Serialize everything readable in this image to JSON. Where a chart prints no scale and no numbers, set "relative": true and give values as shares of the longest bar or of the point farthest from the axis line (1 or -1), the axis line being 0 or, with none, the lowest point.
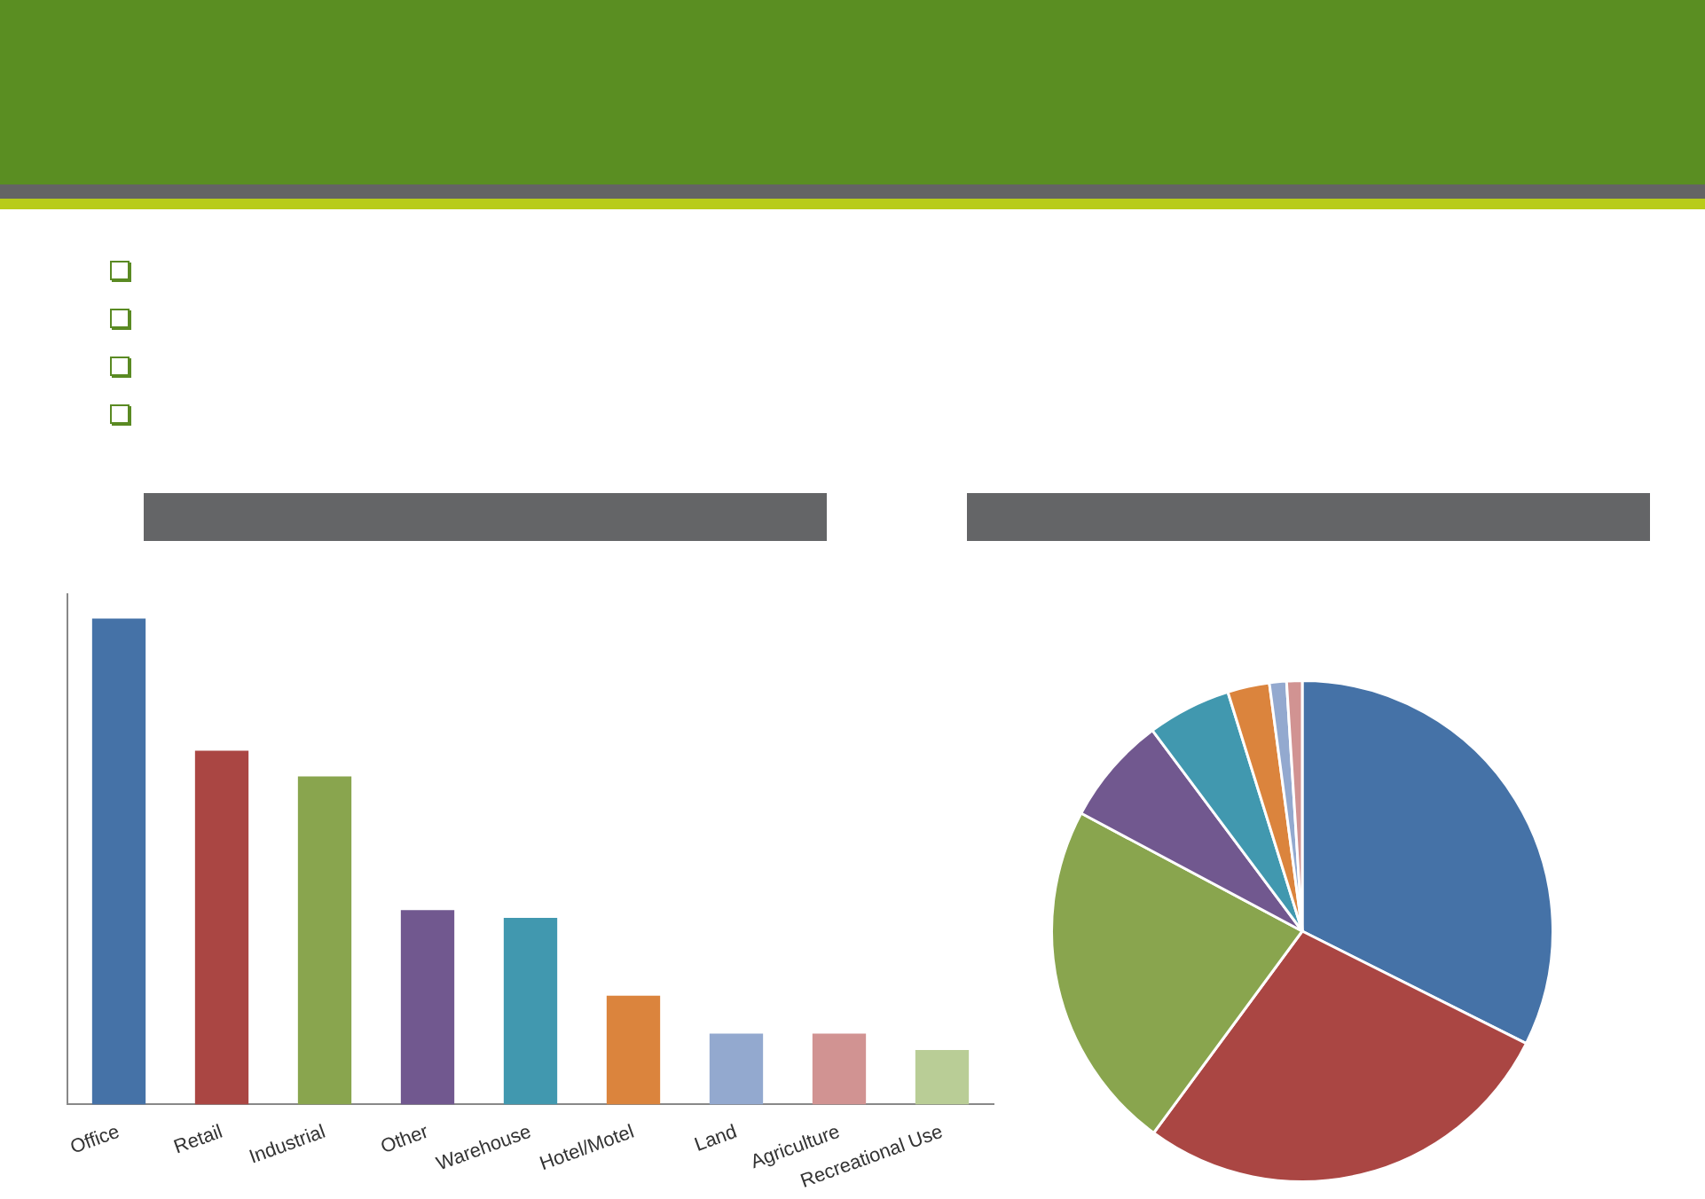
{
  "chart_data": [
    {
      "type": "bar",
      "relative": true,
      "categories": [
        "Office",
        "Retail",
        "Industrial",
        "Other",
        "Warehouse",
        "Hotel/Motel",
        "Land",
        "Agriculture",
        "Recreational Use"
      ],
      "values": [
        1,
        0.728,
        0.675,
        0.4,
        0.384,
        0.224,
        0.146,
        0.146,
        0.112
      ],
      "colors": [
        "#4572a7",
        "#aa4643",
        "#89a54e",
        "#71588f",
        "#4198af",
        "#db843d",
        "#93a9cf",
        "#d19392",
        "#b9cd96"
      ],
      "grid": false,
      "legend": false
    },
    {
      "type": "pie",
      "categories": [
        null,
        null,
        null,
        null,
        null,
        null,
        null,
        null
      ],
      "values": [
        32.4,
        27.7,
        22.7,
        7.0,
        5.4,
        2.7,
        1.1,
        1.0
      ],
      "colors": [
        "#4572a7",
        "#aa4643",
        "#89a54e",
        "#71588f",
        "#4198af",
        "#db843d",
        "#93a9cf",
        "#d19392"
      ],
      "legend": false
    }
  ]
}
